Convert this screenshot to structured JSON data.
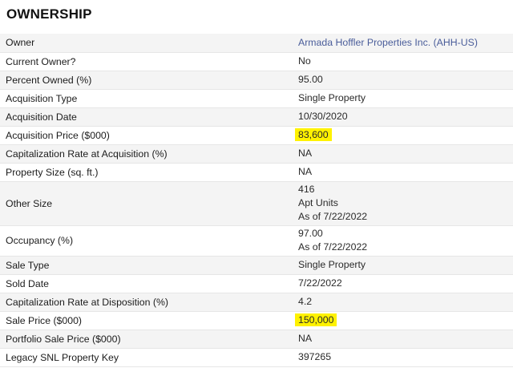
{
  "title": "OWNERSHIP",
  "rows": [
    {
      "label": "Owner",
      "lines": [
        "Armada Hoffler Properties Inc. (AHH-US)"
      ]
    },
    {
      "label": "Current Owner?",
      "lines": [
        "No"
      ]
    },
    {
      "label": "Percent Owned (%)",
      "lines": [
        "95.00"
      ]
    },
    {
      "label": "Acquisition Type",
      "lines": [
        "Single Property"
      ]
    },
    {
      "label": "Acquisition Date",
      "lines": [
        "10/30/2020"
      ]
    },
    {
      "label": "Acquisition Price ($000)",
      "lines": [
        "83,600"
      ]
    },
    {
      "label": "Capitalization Rate at Acquisition (%)",
      "lines": [
        "NA"
      ]
    },
    {
      "label": "Property Size (sq. ft.)",
      "lines": [
        "NA"
      ]
    },
    {
      "label": "Other Size",
      "lines": [
        "416",
        "Apt Units",
        "As of 7/22/2022"
      ]
    },
    {
      "label": "Occupancy (%)",
      "lines": [
        "97.00",
        "As of 7/22/2022"
      ]
    },
    {
      "label": "Sale Type",
      "lines": [
        "Single Property"
      ]
    },
    {
      "label": "Sold Date",
      "lines": [
        "7/22/2022"
      ]
    },
    {
      "label": "Capitalization Rate at Disposition (%)",
      "lines": [
        "4.2"
      ]
    },
    {
      "label": "Sale Price ($000)",
      "lines": [
        "150,000"
      ]
    },
    {
      "label": "Portfolio Sale Price ($000)",
      "lines": [
        "NA"
      ]
    },
    {
      "label": "Legacy SNL Property Key",
      "lines": [
        "397265"
      ]
    }
  ],
  "colors": {
    "highlight": "#fff200",
    "link": "#4a5d9a",
    "stripe": "#f4f4f4"
  }
}
